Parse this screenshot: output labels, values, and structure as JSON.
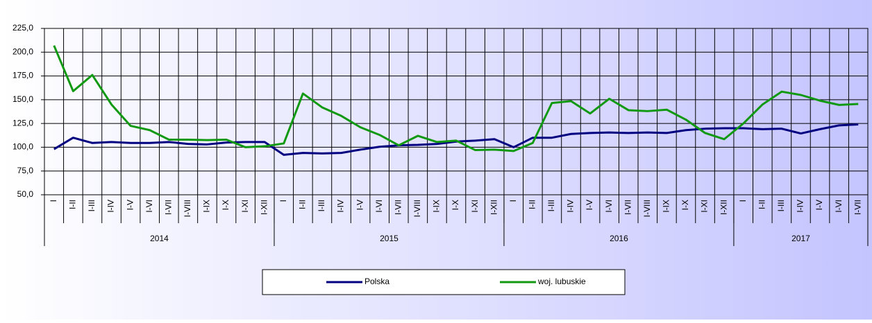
{
  "chart_data": {
    "type": "line",
    "categories": [
      "I",
      "I-II",
      "I-III",
      "I-IV",
      "I-V",
      "I-VI",
      "I-VII",
      "I-VIII",
      "I-IX",
      "I-X",
      "I-XI",
      "I-XII",
      "I",
      "I-II",
      "I-III",
      "I-IV",
      "I-V",
      "I-VI",
      "I-VII",
      "I-VIII",
      "I-IX",
      "I-X",
      "I-XI",
      "I-XII",
      "I",
      "I-II",
      "I-III",
      "I-IV",
      "I-V",
      "I-VI",
      "I-VII",
      "I-VIII",
      "I-IX",
      "I-X",
      "I-XI",
      "I-XII",
      "I",
      "I-II",
      "I-III",
      "I-IV",
      "I-V",
      "I-VI",
      "I-VII"
    ],
    "years": [
      "2014",
      "2015",
      "2016",
      "2017"
    ],
    "series": [
      {
        "name": "Polska",
        "color": "#000080",
        "values": [
          98,
          110,
          104.5,
          105.5,
          104.5,
          104.5,
          105.5,
          103.5,
          103,
          105,
          105.5,
          105.5,
          92,
          94,
          93.5,
          94,
          97.5,
          100.5,
          102,
          102.5,
          103.5,
          106,
          107,
          108.5,
          100,
          110,
          110,
          114,
          115,
          115.5,
          115,
          115.5,
          115,
          118,
          119.5,
          120,
          120,
          119,
          119.5,
          114.5,
          119,
          123,
          124
        ]
      },
      {
        "name": "woj. lubuskie",
        "color": "#119911",
        "values": [
          207,
          159,
          176,
          145,
          122.5,
          118,
          108,
          108,
          107.5,
          108,
          100,
          101,
          104,
          156.5,
          142,
          133,
          121,
          113,
          102,
          112,
          105.5,
          107,
          97,
          97.5,
          96,
          104.5,
          146.5,
          148.5,
          135.5,
          151,
          139,
          138,
          139.5,
          129,
          115,
          108.5,
          125,
          145,
          158.5,
          155,
          149,
          144.5,
          145.5
        ]
      }
    ],
    "ylim": [
      50,
      225
    ],
    "yticks": [
      {
        "value": 50,
        "label": "50,0"
      },
      {
        "value": 75,
        "label": "75,0"
      },
      {
        "value": 100,
        "label": "100,0"
      },
      {
        "value": 125,
        "label": "125,0"
      },
      {
        "value": 150,
        "label": "150,0"
      },
      {
        "value": 175,
        "label": "175,0"
      },
      {
        "value": 200,
        "label": "200,0"
      },
      {
        "value": 225,
        "label": "225,0"
      }
    ],
    "grid": true
  }
}
